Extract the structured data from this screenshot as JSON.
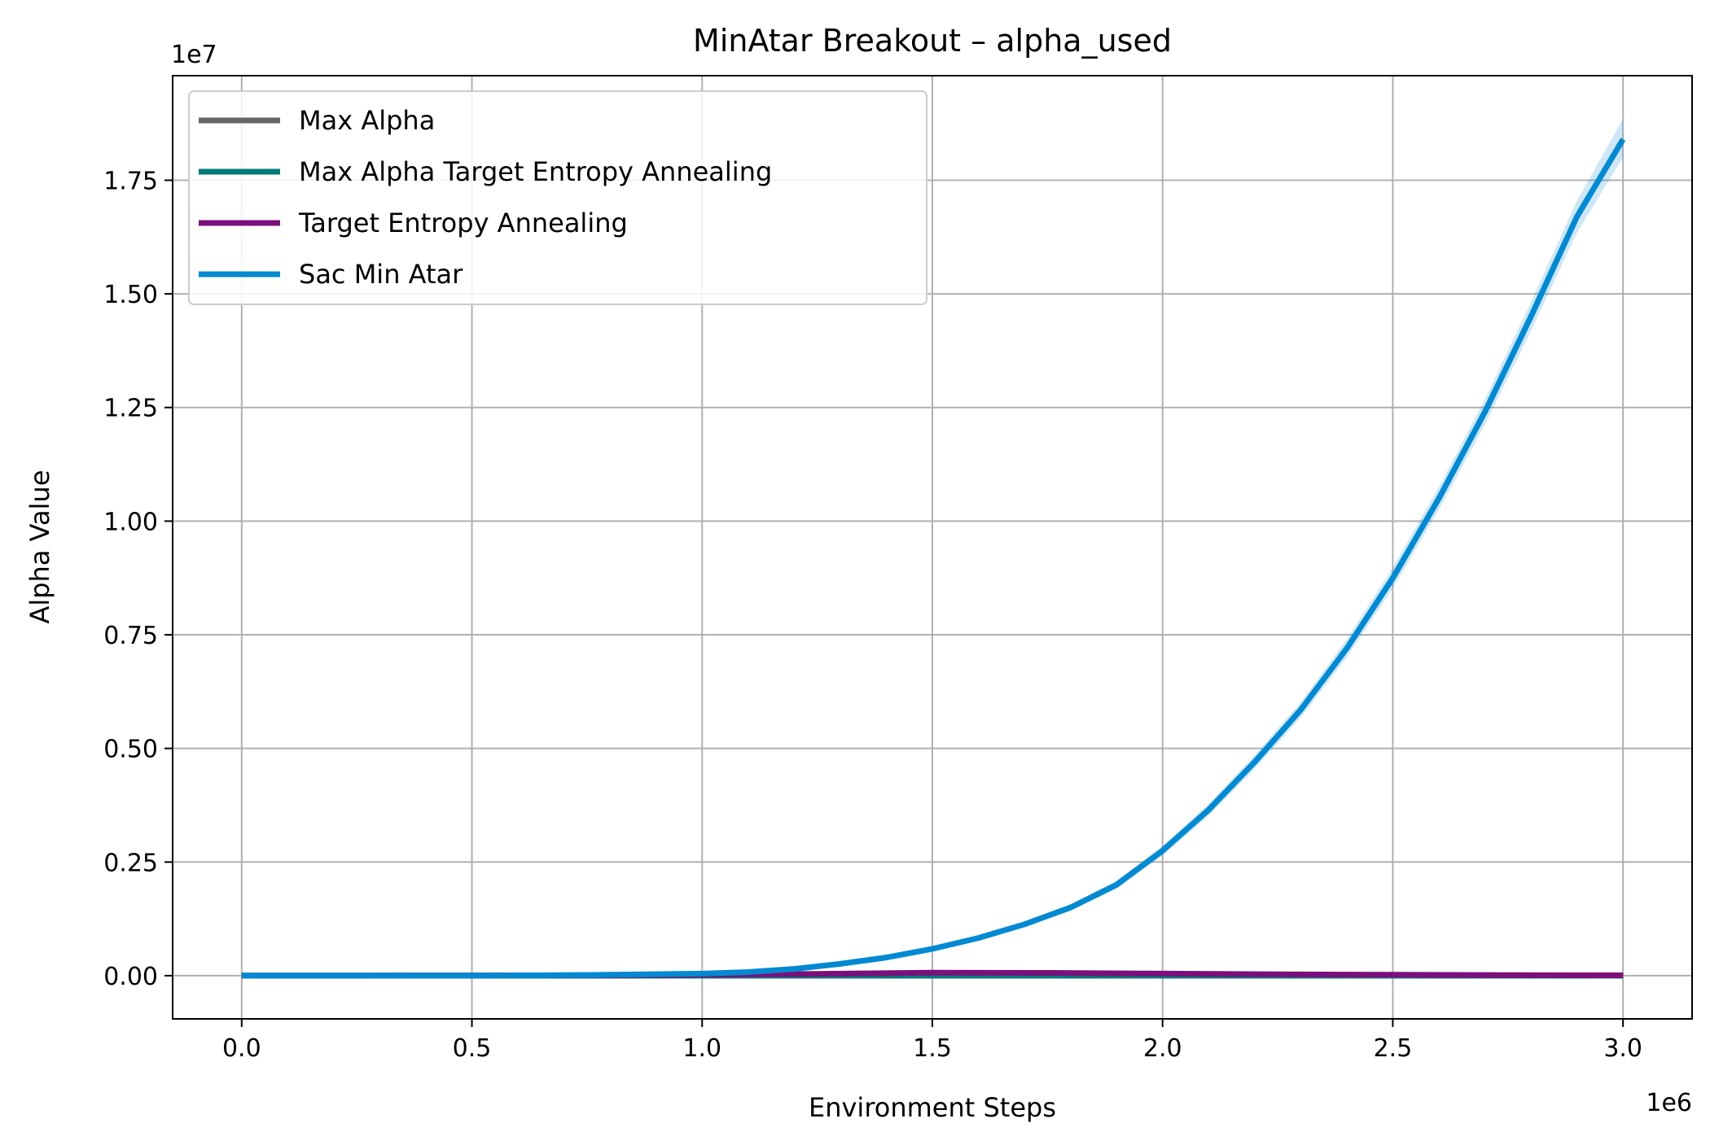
{
  "chart_data": {
    "type": "line",
    "title": "MinAtar Breakout – alpha_used",
    "xlabel": "Environment Steps",
    "ylabel": "Alpha Value",
    "x_offset_label": "1e6",
    "y_offset_label": "1e7",
    "xlim": [
      -0.15,
      3.15
    ],
    "ylim": [
      -0.095,
      1.98
    ],
    "x_scale_factor": 1000000,
    "y_scale_factor": 10000000,
    "x_ticks": [
      0.0,
      0.5,
      1.0,
      1.5,
      2.0,
      2.5,
      3.0
    ],
    "x_tick_labels": [
      "0.0",
      "0.5",
      "1.0",
      "1.5",
      "2.0",
      "2.5",
      "3.0"
    ],
    "y_ticks": [
      0.0,
      0.25,
      0.5,
      0.75,
      1.0,
      1.25,
      1.5,
      1.75
    ],
    "y_tick_labels": [
      "0.00",
      "0.25",
      "0.50",
      "0.75",
      "1.00",
      "1.25",
      "1.50",
      "1.75"
    ],
    "grid": true,
    "legend_position": "upper-left",
    "series": [
      {
        "name": "Max Alpha",
        "color": "#666666",
        "x": [
          0.0,
          0.5,
          1.0,
          1.5,
          2.0,
          2.5,
          3.0
        ],
        "y": [
          0.0,
          0.0,
          0.0,
          0.0,
          0.0,
          0.0,
          0.0
        ]
      },
      {
        "name": "Max Alpha Target Entropy Annealing",
        "color": "#007b7b",
        "x": [
          0.0,
          0.5,
          1.0,
          1.5,
          2.0,
          2.5,
          3.0
        ],
        "y": [
          0.0,
          0.0,
          0.0,
          0.0,
          0.0,
          0.0,
          0.0
        ]
      },
      {
        "name": "Target Entropy Annealing",
        "color": "#7b0f7b",
        "x": [
          0.0,
          0.25,
          0.5,
          0.75,
          1.0,
          1.25,
          1.5,
          1.75,
          2.0,
          2.25,
          2.5,
          2.75,
          3.0
        ],
        "y": [
          0.0,
          0.0,
          0.0005,
          0.001,
          0.002,
          0.004,
          0.0065,
          0.0062,
          0.0045,
          0.003,
          0.002,
          0.0012,
          0.0008
        ]
      },
      {
        "name": "Sac Min Atar",
        "color": "#0389d1",
        "x": [
          0.0,
          0.25,
          0.5,
          0.75,
          1.0,
          1.1,
          1.2,
          1.3,
          1.4,
          1.5,
          1.6,
          1.7,
          1.8,
          1.9,
          2.0,
          2.1,
          2.2,
          2.3,
          2.4,
          2.5,
          2.6,
          2.7,
          2.8,
          2.9,
          3.0
        ],
        "y": [
          0.0,
          0.0,
          0.0,
          0.0015,
          0.0045,
          0.008,
          0.015,
          0.026,
          0.04,
          0.059,
          0.083,
          0.113,
          0.15,
          0.2,
          0.275,
          0.365,
          0.47,
          0.585,
          0.72,
          0.875,
          1.05,
          1.24,
          1.45,
          1.67,
          1.84
        ],
        "band_lower": [
          0.0,
          0.0,
          0.0,
          0.0012,
          0.004,
          0.0072,
          0.0138,
          0.024,
          0.037,
          0.055,
          0.078,
          0.107,
          0.143,
          0.191,
          0.264,
          0.352,
          0.455,
          0.568,
          0.7,
          0.852,
          1.025,
          1.212,
          1.418,
          1.635,
          1.8
        ],
        "band_upper": [
          0.0,
          0.0,
          0.0,
          0.0018,
          0.005,
          0.0088,
          0.0162,
          0.028,
          0.043,
          0.063,
          0.088,
          0.119,
          0.157,
          0.209,
          0.286,
          0.378,
          0.485,
          0.602,
          0.74,
          0.898,
          1.075,
          1.268,
          1.482,
          1.705,
          1.885
        ]
      }
    ]
  }
}
